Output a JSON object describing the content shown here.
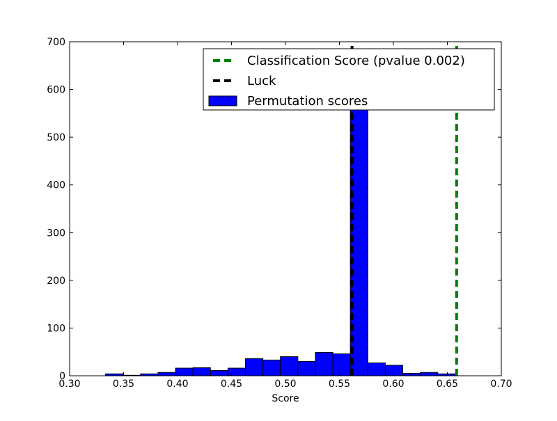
{
  "chart_data": {
    "type": "bar",
    "title": "",
    "xlabel": "Score",
    "ylabel": "",
    "xlim": [
      0.3,
      0.7
    ],
    "ylim": [
      0,
      700
    ],
    "xticks": [
      "0.30",
      "0.35",
      "0.40",
      "0.45",
      "0.50",
      "0.55",
      "0.60",
      "0.65",
      "0.70"
    ],
    "yticks": [
      "0",
      "100",
      "200",
      "300",
      "400",
      "500",
      "600",
      "700"
    ],
    "grid": false,
    "legend_position": "top-right",
    "series": [
      {
        "name": "Permutation scores",
        "kind": "histogram",
        "color": "#0000ff",
        "bin_edges": [
          0.3333,
          0.3495,
          0.3657,
          0.3819,
          0.3981,
          0.4143,
          0.4305,
          0.4467,
          0.4629,
          0.4791,
          0.4953,
          0.5115,
          0.5277,
          0.5439,
          0.5601,
          0.5763,
          0.5925,
          0.6087,
          0.6249,
          0.6411,
          0.6573
        ],
        "counts": [
          4,
          1,
          4,
          7,
          16,
          17,
          11,
          16,
          36,
          33,
          40,
          30,
          49,
          46,
          570,
          27,
          22,
          5,
          7,
          4
        ]
      },
      {
        "name": "Luck",
        "kind": "vline",
        "color": "#000000",
        "x": 0.5617
      },
      {
        "name": "Classification Score (pvalue 0.002)",
        "kind": "vline",
        "color": "#008000",
        "x": 0.6586
      }
    ]
  }
}
